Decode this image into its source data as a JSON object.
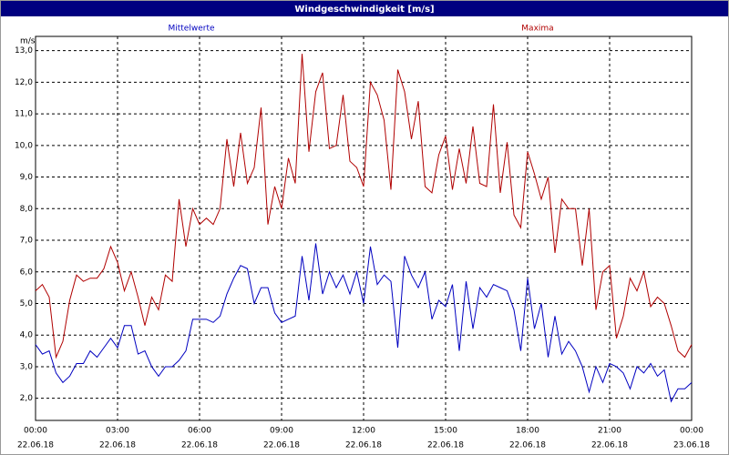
{
  "chart_data": {
    "type": "line",
    "title": "Windgeschwindigkeit [m/s]",
    "y_label": "m/s",
    "grid": true,
    "x": [
      0,
      0.25,
      0.5,
      0.75,
      1,
      1.25,
      1.5,
      1.75,
      2,
      2.25,
      2.5,
      2.75,
      3,
      3.25,
      3.5,
      3.75,
      4,
      4.25,
      4.5,
      4.75,
      5,
      5.25,
      5.5,
      5.75,
      6,
      6.25,
      6.5,
      6.75,
      7,
      7.25,
      7.5,
      7.75,
      8,
      8.25,
      8.5,
      8.75,
      9,
      9.25,
      9.5,
      9.75,
      10,
      10.25,
      10.5,
      10.75,
      11,
      11.25,
      11.5,
      11.75,
      12,
      12.25,
      12.5,
      12.75,
      13,
      13.25,
      13.5,
      13.75,
      14,
      14.25,
      14.5,
      14.75,
      15,
      15.25,
      15.5,
      15.75,
      16,
      16.25,
      16.5,
      16.75,
      17,
      17.25,
      17.5,
      17.75,
      18,
      18.25,
      18.5,
      18.75,
      19,
      19.25,
      19.5,
      19.75,
      20,
      20.25,
      20.5,
      20.75,
      21,
      21.25,
      21.5,
      21.75,
      22,
      22.25,
      22.5,
      22.75,
      23,
      23.25,
      23.5,
      23.75,
      24
    ],
    "xlim": [
      0,
      24
    ],
    "xticks": [
      {
        "value": 0,
        "label": "00:00",
        "date": "22.06.18"
      },
      {
        "value": 3,
        "label": "03:00",
        "date": "22.06.18"
      },
      {
        "value": 6,
        "label": "06:00",
        "date": "22.06.18"
      },
      {
        "value": 9,
        "label": "09:00",
        "date": "22.06.18"
      },
      {
        "value": 12,
        "label": "12:00",
        "date": "22.06.18"
      },
      {
        "value": 15,
        "label": "15:00",
        "date": "22.06.18"
      },
      {
        "value": 18,
        "label": "18:00",
        "date": "22.06.18"
      },
      {
        "value": 21,
        "label": "21:00",
        "date": "22.06.18"
      },
      {
        "value": 24,
        "label": "00:00",
        "date": "23.06.18"
      }
    ],
    "ylim": [
      1.3,
      13.45
    ],
    "yticks": [
      {
        "value": 2,
        "label": "2,0"
      },
      {
        "value": 3,
        "label": "3,0"
      },
      {
        "value": 4,
        "label": "4,0"
      },
      {
        "value": 5,
        "label": "5,0"
      },
      {
        "value": 6,
        "label": "6,0"
      },
      {
        "value": 7,
        "label": "7,0"
      },
      {
        "value": 8,
        "label": "8,0"
      },
      {
        "value": 9,
        "label": "9,0"
      },
      {
        "value": 10,
        "label": "10,0"
      },
      {
        "value": 11,
        "label": "11,0"
      },
      {
        "value": 12,
        "label": "12,0"
      },
      {
        "value": 13,
        "label": "13,0"
      }
    ],
    "series": [
      {
        "name": "Mittelwerte",
        "color": "#0000c0",
        "values": [
          3.7,
          3.4,
          3.5,
          2.8,
          2.5,
          2.7,
          3.1,
          3.1,
          3.5,
          3.3,
          3.6,
          3.9,
          3.6,
          4.3,
          4.3,
          3.4,
          3.5,
          3.0,
          2.7,
          3.0,
          3.0,
          3.2,
          3.5,
          4.5,
          4.5,
          4.5,
          4.4,
          4.6,
          5.3,
          5.8,
          6.2,
          6.1,
          5.0,
          5.5,
          5.5,
          4.7,
          4.4,
          4.5,
          4.6,
          6.5,
          5.1,
          6.9,
          5.3,
          6.0,
          5.5,
          5.9,
          5.3,
          6.0,
          5.0,
          6.8,
          5.6,
          5.9,
          5.7,
          3.6,
          6.5,
          5.9,
          5.5,
          6.0,
          4.5,
          5.1,
          4.9,
          5.6,
          3.5,
          5.7,
          4.2,
          5.5,
          5.2,
          5.6,
          5.5,
          5.4,
          4.8,
          3.5,
          5.8,
          4.2,
          5.0,
          3.3,
          4.6,
          3.4,
          3.8,
          3.5,
          3.0,
          2.2,
          3.0,
          2.5,
          3.1,
          3.0,
          2.8,
          2.3,
          3.0,
          2.8,
          3.1,
          2.7,
          2.9,
          1.9,
          2.3,
          2.3,
          2.5
        ]
      },
      {
        "name": "Maxima",
        "color": "#b00000",
        "values": [
          5.4,
          5.6,
          5.2,
          3.3,
          3.8,
          5.1,
          5.9,
          5.7,
          5.8,
          5.8,
          6.1,
          6.8,
          6.3,
          5.4,
          6.0,
          5.2,
          4.3,
          5.2,
          4.8,
          5.9,
          5.7,
          8.3,
          6.8,
          8.0,
          7.5,
          7.7,
          7.5,
          8.0,
          10.2,
          8.7,
          10.4,
          8.8,
          9.3,
          11.2,
          7.5,
          8.7,
          8.0,
          9.6,
          8.8,
          12.9,
          9.8,
          11.7,
          12.3,
          9.9,
          10.0,
          11.6,
          9.5,
          9.3,
          8.7,
          12.0,
          11.6,
          10.8,
          8.6,
          12.4,
          11.7,
          10.2,
          11.4,
          8.7,
          8.5,
          9.7,
          10.3,
          8.6,
          9.9,
          8.8,
          10.6,
          8.8,
          8.7,
          11.3,
          8.5,
          10.1,
          7.8,
          7.4,
          9.8,
          9.1,
          8.3,
          9.0,
          6.6,
          8.3,
          8.0,
          8.0,
          6.2,
          8.0,
          4.8,
          6.0,
          6.2,
          3.9,
          4.6,
          5.8,
          5.4,
          6.0,
          4.9,
          5.2,
          5.0,
          4.3,
          3.5,
          3.3,
          3.7
        ]
      }
    ]
  }
}
